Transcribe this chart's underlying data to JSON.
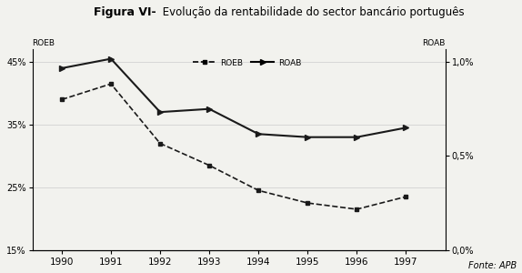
{
  "title_bold": "Figura VI-",
  "title_normal": " Evolução da rentabilidade do sector bancário português",
  "years": [
    1990,
    1991,
    1992,
    1993,
    1994,
    1995,
    1996,
    1997
  ],
  "ROEB": [
    39.0,
    41.5,
    32.0,
    28.5,
    24.5,
    22.5,
    21.5,
    23.5
  ],
  "ROAB": [
    44.0,
    45.5,
    37.0,
    37.5,
    33.5,
    33.0,
    33.0,
    34.5
  ],
  "ylim_left": [
    15,
    47
  ],
  "ylim_right": [
    0.0,
    1.067
  ],
  "yticks_left": [
    15,
    25,
    35,
    45
  ],
  "yticks_right": [
    0.0,
    0.5,
    1.0
  ],
  "ylabel_left": "ROEB",
  "ylabel_right": "ROAB",
  "fonte": "Fonte: APB",
  "background_color": "#f2f2ee",
  "line_color": "#1a1a1a",
  "grid_color": "#c8c8c8"
}
